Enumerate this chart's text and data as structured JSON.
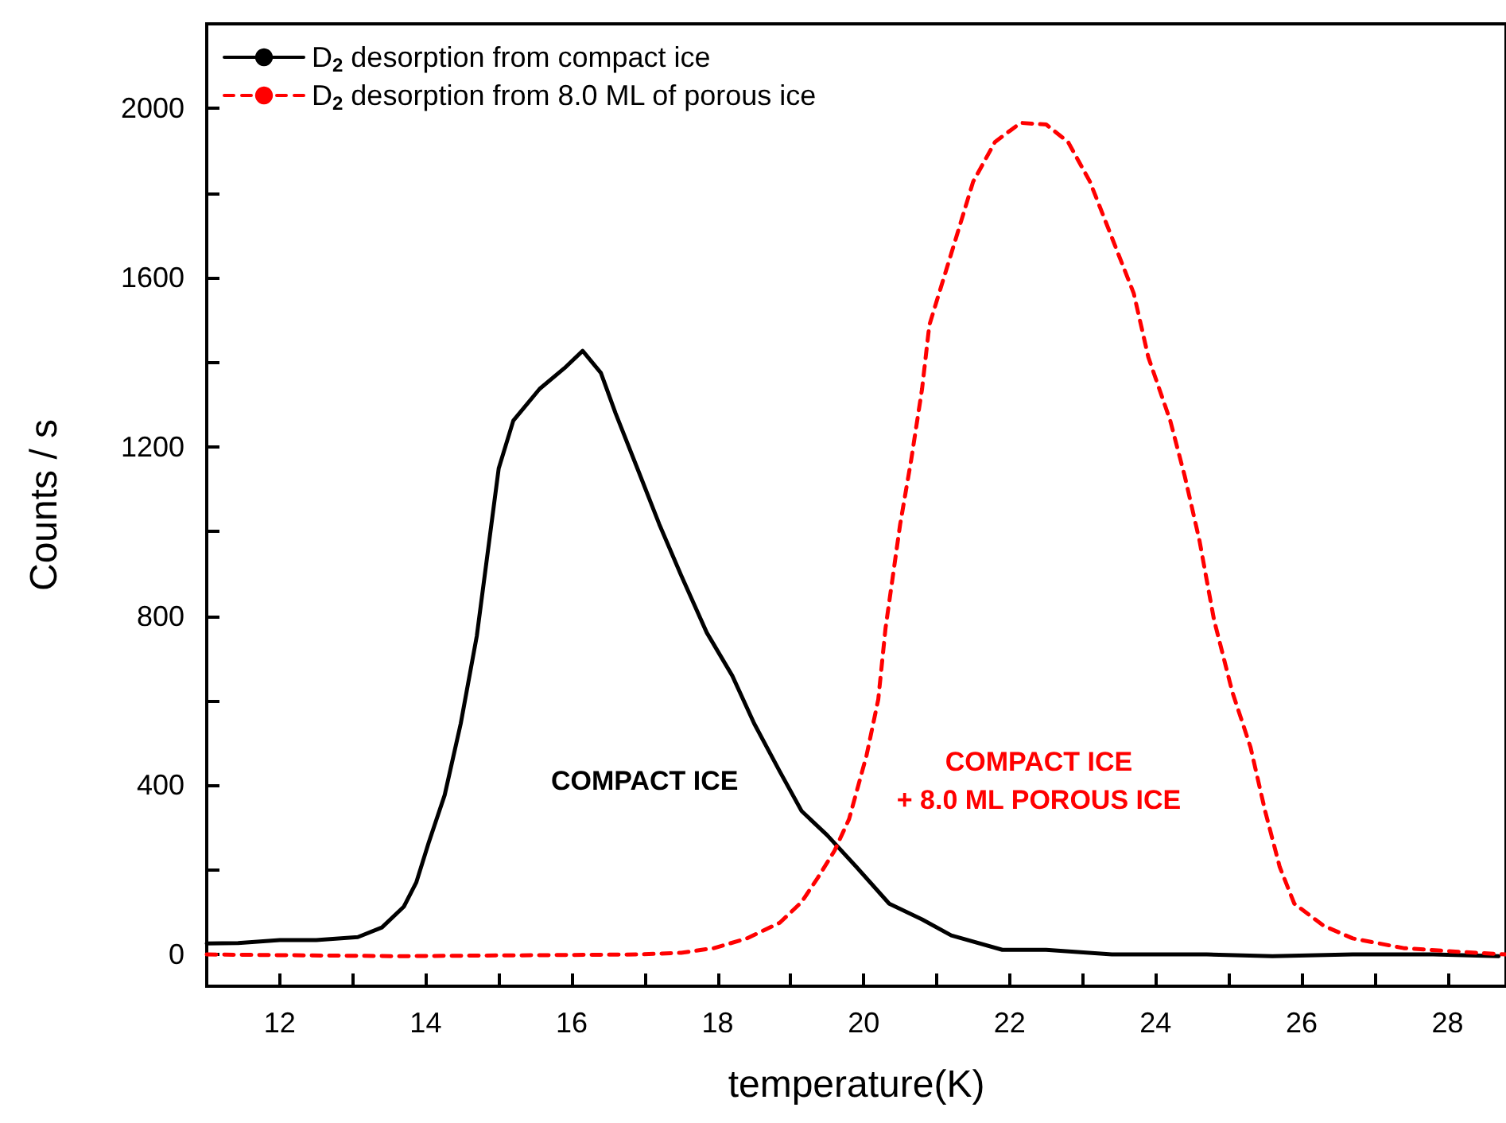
{
  "chart_data": {
    "type": "line",
    "xlabel": "temperature(K)",
    "ylabel": "Counts / s",
    "xlim": [
      11,
      28.8
    ],
    "ylim": [
      -75,
      2200
    ],
    "xticks": [
      12,
      {
        "value": 13,
        "label": null
      },
      14,
      {
        "value": 15,
        "label": null
      },
      16,
      {
        "value": 17,
        "label": null
      },
      18,
      {
        "value": 19,
        "label": null
      },
      20,
      {
        "value": 21,
        "label": null
      },
      22,
      {
        "value": 23,
        "label": null
      },
      24,
      {
        "value": 25,
        "label": null
      },
      26,
      {
        "value": 27,
        "label": null
      },
      28
    ],
    "yticks": [
      0,
      {
        "value": 200,
        "label": null
      },
      400,
      {
        "value": 600,
        "label": null
      },
      800,
      {
        "value": 1000,
        "label": null
      },
      1200,
      {
        "value": 1400,
        "label": null
      },
      1600,
      {
        "value": 1800,
        "label": null
      },
      2000
    ],
    "grid": false,
    "legend": "top left",
    "marker": "none",
    "annotations": [
      "COMPACT ICE",
      "COMPACT ICE\n+ 8.0 ML POROUS ICE"
    ],
    "series": [
      {
        "name": "D$_{2}$ desorption from compact ice",
        "color": "#000000",
        "line_style": "solid",
        "x": [
          11.0,
          11.43,
          12.0,
          12.5,
          13.07,
          13.4,
          13.7,
          13.87,
          14.04,
          14.26,
          14.48,
          14.7,
          14.9,
          15.0,
          15.2,
          15.56,
          15.9,
          16.15,
          16.4,
          16.6,
          16.9,
          17.2,
          17.5,
          17.85,
          18.2,
          18.5,
          18.85,
          19.15,
          19.5,
          19.9,
          20.35,
          20.8,
          21.2,
          21.9,
          22.5,
          23.4,
          24.7,
          25.6,
          26.7,
          27.8,
          28.7
        ],
        "values": [
          26,
          27,
          34,
          34,
          41,
          64,
          113,
          170,
          264,
          377,
          546,
          753,
          1017,
          1149,
          1262,
          1337,
          1386,
          1427,
          1375,
          1280,
          1149,
          1017,
          896,
          761,
          659,
          546,
          433,
          339,
          282,
          207,
          120,
          83,
          45,
          11,
          11,
          0,
          0,
          -4,
          0,
          0,
          -4
        ]
      },
      {
        "name": "D$_{2}$ desorption from 8.0 ML of porous ice",
        "color": "#ff0000",
        "line_style": "dashed",
        "x": [
          11.0,
          13.6,
          16.9,
          17.5,
          17.95,
          18.4,
          18.85,
          19.15,
          19.37,
          19.6,
          19.8,
          20.04,
          20.2,
          20.3,
          20.5,
          20.65,
          20.8,
          20.9,
          21.2,
          21.5,
          21.8,
          22.15,
          22.5,
          22.8,
          23.1,
          23.4,
          23.7,
          23.9,
          24.2,
          24.4,
          24.6,
          24.8,
          25.05,
          25.3,
          25.5,
          25.7,
          25.9,
          26.3,
          26.7,
          27.4,
          28.0,
          28.8
        ],
        "values": [
          0,
          -4,
          0,
          4,
          15,
          38,
          75,
          124,
          181,
          245,
          320,
          471,
          603,
          772,
          1017,
          1168,
          1337,
          1488,
          1657,
          1827,
          1921,
          1966,
          1962,
          1921,
          1827,
          1695,
          1563,
          1412,
          1262,
          1130,
          979,
          791,
          621,
          490,
          339,
          207,
          120,
          68,
          38,
          15,
          8,
          0
        ]
      }
    ]
  }
}
